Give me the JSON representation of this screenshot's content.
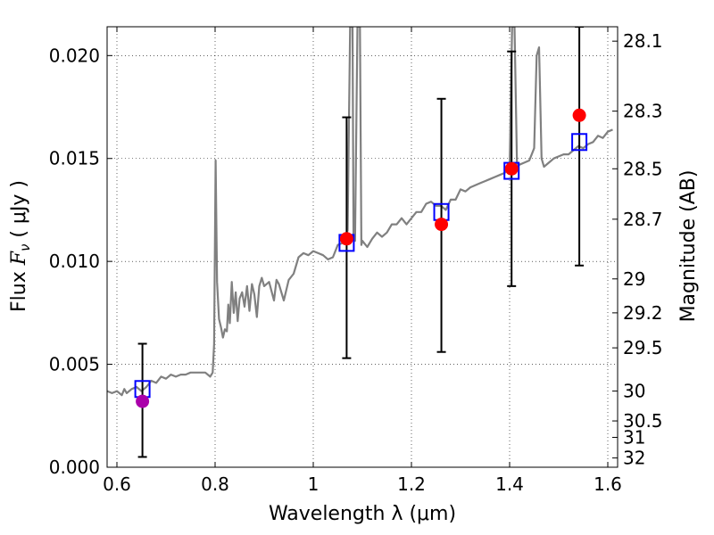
{
  "chart_data": {
    "type": "line",
    "xlabel": "Wavelength  λ (μm)",
    "ylabel_left_prefix": "Flux ",
    "ylabel_left_symbol": "F",
    "ylabel_left_sub": "ν",
    "ylabel_left_unit": "  ( μJy )",
    "ylabel_right": "Magnitude (AB)",
    "xlim": [
      0.58,
      1.62
    ],
    "ylim": [
      0.0,
      0.0214
    ],
    "grid": true,
    "x_ticks": [
      {
        "value": 0.6,
        "label": "0.6"
      },
      {
        "value": 0.8,
        "label": "0.8"
      },
      {
        "value": 1.0,
        "label": "1"
      },
      {
        "value": 1.2,
        "label": "1.2"
      },
      {
        "value": 1.4,
        "label": "1.4"
      },
      {
        "value": 1.6,
        "label": "1.6"
      }
    ],
    "y_ticks": [
      {
        "value": 0.0,
        "label": "0.000"
      },
      {
        "value": 0.005,
        "label": "0.005"
      },
      {
        "value": 0.01,
        "label": "0.010"
      },
      {
        "value": 0.015,
        "label": "0.015"
      },
      {
        "value": 0.02,
        "label": "0.020"
      }
    ],
    "right_ticks": [
      {
        "flux": 0.0207,
        "label": "28.1"
      },
      {
        "flux": 0.0173,
        "label": "28.3"
      },
      {
        "flux": 0.0145,
        "label": "28.5"
      },
      {
        "flux": 0.01205,
        "label": "28.7"
      },
      {
        "flux": 0.00915,
        "label": "29"
      },
      {
        "flux": 0.0075,
        "label": "29.2"
      },
      {
        "flux": 0.0058,
        "label": "29.5"
      },
      {
        "flux": 0.0037,
        "label": "30"
      },
      {
        "flux": 0.00225,
        "label": "30.5"
      },
      {
        "flux": 0.00145,
        "label": "31"
      },
      {
        "flux": 0.00045,
        "label": "32"
      }
    ],
    "sed_color": "#808080",
    "sed": [
      [
        0.58,
        0.0037
      ],
      [
        0.59,
        0.0036
      ],
      [
        0.6,
        0.0037
      ],
      [
        0.61,
        0.0035
      ],
      [
        0.615,
        0.0038
      ],
      [
        0.62,
        0.0036
      ],
      [
        0.63,
        0.0038
      ],
      [
        0.64,
        0.0039
      ],
      [
        0.65,
        0.0037
      ],
      [
        0.66,
        0.0039
      ],
      [
        0.67,
        0.0042
      ],
      [
        0.68,
        0.0041
      ],
      [
        0.69,
        0.0044
      ],
      [
        0.7,
        0.0043
      ],
      [
        0.71,
        0.0045
      ],
      [
        0.72,
        0.0044
      ],
      [
        0.73,
        0.0045
      ],
      [
        0.74,
        0.0045
      ],
      [
        0.75,
        0.0046
      ],
      [
        0.76,
        0.0046
      ],
      [
        0.77,
        0.0046
      ],
      [
        0.78,
        0.0046
      ],
      [
        0.79,
        0.0044
      ],
      [
        0.795,
        0.0046
      ],
      [
        0.798,
        0.006
      ],
      [
        0.801,
        0.0149
      ],
      [
        0.804,
        0.009
      ],
      [
        0.808,
        0.0072
      ],
      [
        0.812,
        0.0068
      ],
      [
        0.816,
        0.0063
      ],
      [
        0.82,
        0.0067
      ],
      [
        0.824,
        0.0066
      ],
      [
        0.827,
        0.0079
      ],
      [
        0.83,
        0.007
      ],
      [
        0.834,
        0.009
      ],
      [
        0.838,
        0.0075
      ],
      [
        0.842,
        0.0085
      ],
      [
        0.846,
        0.0071
      ],
      [
        0.85,
        0.0082
      ],
      [
        0.855,
        0.0085
      ],
      [
        0.86,
        0.0078
      ],
      [
        0.865,
        0.0088
      ],
      [
        0.87,
        0.0076
      ],
      [
        0.875,
        0.0089
      ],
      [
        0.88,
        0.0084
      ],
      [
        0.885,
        0.0073
      ],
      [
        0.89,
        0.0088
      ],
      [
        0.895,
        0.0092
      ],
      [
        0.9,
        0.0088
      ],
      [
        0.91,
        0.009
      ],
      [
        0.92,
        0.0081
      ],
      [
        0.925,
        0.0091
      ],
      [
        0.93,
        0.0089
      ],
      [
        0.94,
        0.0081
      ],
      [
        0.95,
        0.0091
      ],
      [
        0.96,
        0.0094
      ],
      [
        0.97,
        0.0102
      ],
      [
        0.98,
        0.0104
      ],
      [
        0.99,
        0.0103
      ],
      [
        1.0,
        0.0105
      ],
      [
        1.01,
        0.0104
      ],
      [
        1.02,
        0.0103
      ],
      [
        1.03,
        0.0101
      ],
      [
        1.04,
        0.0102
      ],
      [
        1.05,
        0.0108
      ],
      [
        1.06,
        0.0109
      ],
      [
        1.065,
        0.0112
      ],
      [
        1.07,
        0.0115
      ],
      [
        1.075,
        0.0214
      ],
      [
        1.08,
        0.0214
      ],
      [
        1.082,
        0.0112
      ],
      [
        1.085,
        0.011
      ],
      [
        1.09,
        0.0214
      ],
      [
        1.095,
        0.0214
      ],
      [
        1.098,
        0.0108
      ],
      [
        1.1,
        0.011
      ],
      [
        1.11,
        0.0107
      ],
      [
        1.12,
        0.0111
      ],
      [
        1.13,
        0.0114
      ],
      [
        1.14,
        0.0112
      ],
      [
        1.15,
        0.0114
      ],
      [
        1.16,
        0.0118
      ],
      [
        1.17,
        0.0118
      ],
      [
        1.18,
        0.0121
      ],
      [
        1.19,
        0.0118
      ],
      [
        1.2,
        0.0121
      ],
      [
        1.21,
        0.0124
      ],
      [
        1.22,
        0.0124
      ],
      [
        1.23,
        0.0128
      ],
      [
        1.24,
        0.0129
      ],
      [
        1.25,
        0.0127
      ],
      [
        1.26,
        0.0127
      ],
      [
        1.27,
        0.0125
      ],
      [
        1.28,
        0.013
      ],
      [
        1.29,
        0.013
      ],
      [
        1.3,
        0.0135
      ],
      [
        1.31,
        0.0134
      ],
      [
        1.32,
        0.0136
      ],
      [
        1.33,
        0.0137
      ],
      [
        1.34,
        0.0138
      ],
      [
        1.35,
        0.0139
      ],
      [
        1.36,
        0.014
      ],
      [
        1.37,
        0.0141
      ],
      [
        1.38,
        0.0142
      ],
      [
        1.39,
        0.0143
      ],
      [
        1.4,
        0.0146
      ],
      [
        1.405,
        0.0214
      ],
      [
        1.41,
        0.0214
      ],
      [
        1.415,
        0.0146
      ],
      [
        1.42,
        0.0147
      ],
      [
        1.43,
        0.0148
      ],
      [
        1.44,
        0.0149
      ],
      [
        1.445,
        0.0152
      ],
      [
        1.45,
        0.0155
      ],
      [
        1.455,
        0.02
      ],
      [
        1.46,
        0.0204
      ],
      [
        1.465,
        0.015
      ],
      [
        1.47,
        0.0146
      ],
      [
        1.48,
        0.0148
      ],
      [
        1.49,
        0.015
      ],
      [
        1.5,
        0.0151
      ],
      [
        1.51,
        0.0152
      ],
      [
        1.52,
        0.0152
      ],
      [
        1.53,
        0.0154
      ],
      [
        1.54,
        0.0156
      ],
      [
        1.55,
        0.0155
      ],
      [
        1.56,
        0.0157
      ],
      [
        1.57,
        0.0158
      ],
      [
        1.58,
        0.0161
      ],
      [
        1.59,
        0.016
      ],
      [
        1.6,
        0.0163
      ],
      [
        1.61,
        0.0164
      ]
    ],
    "model_points": {
      "name": "model photometry (open squares)",
      "color": "#0000ff",
      "points": [
        {
          "x": 0.652,
          "y": 0.0038
        },
        {
          "x": 1.068,
          "y": 0.0109
        },
        {
          "x": 1.261,
          "y": 0.0124
        },
        {
          "x": 1.404,
          "y": 0.0144
        },
        {
          "x": 1.542,
          "y": 0.0158
        }
      ]
    },
    "observed_points": {
      "points": [
        {
          "x": 0.652,
          "y": 0.0032,
          "err_low": 0.0005,
          "err_high": 0.006,
          "color": "#aa00aa"
        },
        {
          "x": 1.068,
          "y": 0.0111,
          "err_low": 0.0053,
          "err_high": 0.017,
          "color": "#ff0000"
        },
        {
          "x": 1.261,
          "y": 0.0118,
          "err_low": 0.0056,
          "err_high": 0.0179,
          "color": "#ff0000"
        },
        {
          "x": 1.404,
          "y": 0.0145,
          "err_low": 0.0088,
          "err_high": 0.0202,
          "color": "#ff0000"
        },
        {
          "x": 1.542,
          "y": 0.0171,
          "err_low": 0.0098,
          "err_high": 0.0214,
          "color": "#ff0000"
        }
      ]
    }
  }
}
